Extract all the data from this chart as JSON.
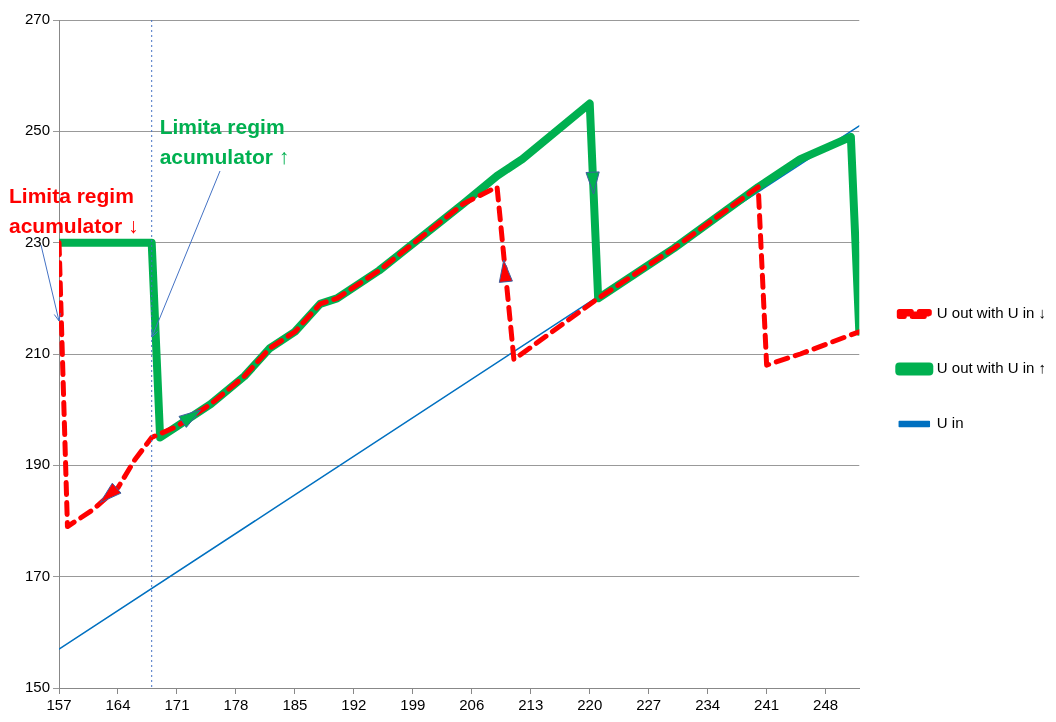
{
  "chart_data": {
    "type": "line",
    "xlim": [
      157,
      252
    ],
    "xticks": [
      157,
      164,
      171,
      178,
      185,
      192,
      199,
      206,
      213,
      220,
      227,
      234,
      241,
      248
    ],
    "ylim": [
      150,
      270
    ],
    "yticks": [
      150,
      170,
      190,
      210,
      230,
      250,
      270
    ],
    "grid": "y",
    "legend": "right",
    "series": [
      {
        "name": "U out with U in ↓",
        "color": "#ff0000",
        "line_style": "dashed",
        "x": [
          157,
          158,
          161,
          164,
          166,
          168,
          171,
          175,
          179,
          182,
          185,
          188,
          190,
          195,
          200,
          205,
          209,
          211,
          221,
          230,
          240,
          241,
          245,
          252
        ],
        "values": [
          230,
          179,
          182,
          186,
          191,
          195,
          197,
          201,
          206,
          211,
          214,
          219,
          220,
          225,
          231,
          237,
          240,
          209,
          220,
          229,
          240,
          208,
          210,
          214
        ]
      },
      {
        "name": "U out with U in ↑",
        "color": "#00b050",
        "line_style": "solid",
        "x": [
          157,
          168,
          169,
          171,
          175,
          179,
          182,
          185,
          188,
          190,
          195,
          200,
          205,
          209,
          212,
          220,
          221,
          230,
          240,
          245,
          251,
          252
        ],
        "values": [
          230,
          230,
          195,
          197,
          201,
          206,
          211,
          214,
          219,
          220,
          225,
          231,
          237,
          242,
          245,
          255,
          220,
          229,
          240,
          245,
          249,
          214
        ]
      },
      {
        "name": "U in",
        "color": "#0070c0",
        "line_style": "solid",
        "x": [
          157,
          252
        ],
        "values": [
          157,
          251
        ]
      }
    ],
    "ref_lines": [
      {
        "axis": "x",
        "value": 168,
        "color": "#4472c4",
        "line_style": "dotted"
      }
    ],
    "annotations": [
      {
        "text": "Limita regim acumulator ↓",
        "x": 157,
        "y": 216
      },
      {
        "text": "Limita regim acumulator ↑",
        "x": 168,
        "y": 213
      }
    ]
  }
}
